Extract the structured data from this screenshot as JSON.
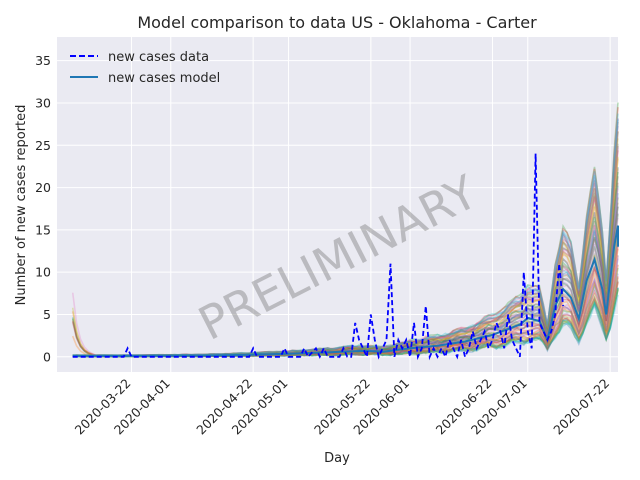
{
  "chart_data": {
    "type": "line",
    "title": "Model comparison to data US - Oklahoma - Carter",
    "xlabel": "Day",
    "ylabel": "Number of new cases reported",
    "watermark": "PRELIMINARY",
    "x_range": [
      "2020-03-03",
      "2020-07-24"
    ],
    "ylim": [
      -1.8,
      37.8
    ],
    "yticks": [
      0,
      5,
      10,
      15,
      20,
      25,
      30,
      35
    ],
    "xticks": [
      "2020-03-22",
      "2020-04-01",
      "2020-04-22",
      "2020-05-01",
      "2020-05-22",
      "2020-06-01",
      "2020-06-22",
      "2020-07-01",
      "2020-07-22"
    ],
    "grid": true,
    "legend_position": "top-left",
    "colors": {
      "background": "#eaeaf2",
      "grid": "#ffffff",
      "data": "#0000ff",
      "model": "#1f77b4"
    },
    "series": [
      {
        "name": "new cases data",
        "style": "dashed",
        "points": [
          [
            "2020-03-07",
            0
          ],
          [
            "2020-03-12",
            0
          ],
          [
            "2020-03-20",
            0
          ],
          [
            "2020-03-21",
            1
          ],
          [
            "2020-03-22",
            0
          ],
          [
            "2020-04-01",
            0
          ],
          [
            "2020-04-12",
            0
          ],
          [
            "2020-04-21",
            0
          ],
          [
            "2020-04-22",
            1
          ],
          [
            "2020-04-23",
            0
          ],
          [
            "2020-04-29",
            0
          ],
          [
            "2020-04-30",
            1
          ],
          [
            "2020-05-01",
            0
          ],
          [
            "2020-05-04",
            0
          ],
          [
            "2020-05-05",
            1
          ],
          [
            "2020-05-06",
            0
          ],
          [
            "2020-05-08",
            1
          ],
          [
            "2020-05-09",
            0
          ],
          [
            "2020-05-10",
            1
          ],
          [
            "2020-05-11",
            0
          ],
          [
            "2020-05-14",
            0
          ],
          [
            "2020-05-15",
            1
          ],
          [
            "2020-05-16",
            0
          ],
          [
            "2020-05-17",
            0
          ],
          [
            "2020-05-18",
            4
          ],
          [
            "2020-05-19",
            2
          ],
          [
            "2020-05-20",
            1
          ],
          [
            "2020-05-21",
            0
          ],
          [
            "2020-05-22",
            5
          ],
          [
            "2020-05-23",
            2
          ],
          [
            "2020-05-24",
            0
          ],
          [
            "2020-05-25",
            1
          ],
          [
            "2020-05-26",
            2
          ],
          [
            "2020-05-27",
            11
          ],
          [
            "2020-05-28",
            0
          ],
          [
            "2020-05-29",
            2
          ],
          [
            "2020-05-30",
            1
          ],
          [
            "2020-05-31",
            2
          ],
          [
            "2020-06-01",
            0
          ],
          [
            "2020-06-02",
            4
          ],
          [
            "2020-06-03",
            0
          ],
          [
            "2020-06-04",
            1
          ],
          [
            "2020-06-05",
            6
          ],
          [
            "2020-06-06",
            0
          ],
          [
            "2020-06-07",
            1
          ],
          [
            "2020-06-08",
            0
          ],
          [
            "2020-06-09",
            1
          ],
          [
            "2020-06-10",
            0
          ],
          [
            "2020-06-11",
            2
          ],
          [
            "2020-06-12",
            1
          ],
          [
            "2020-06-13",
            0
          ],
          [
            "2020-06-14",
            2
          ],
          [
            "2020-06-15",
            0
          ],
          [
            "2020-06-16",
            1
          ],
          [
            "2020-06-17",
            3
          ],
          [
            "2020-06-18",
            1
          ],
          [
            "2020-06-19",
            2
          ],
          [
            "2020-06-20",
            3
          ],
          [
            "2020-06-21",
            1
          ],
          [
            "2020-06-22",
            2
          ],
          [
            "2020-06-23",
            4
          ],
          [
            "2020-06-24",
            3
          ],
          [
            "2020-06-25",
            1
          ],
          [
            "2020-06-26",
            5
          ],
          [
            "2020-06-27",
            2
          ],
          [
            "2020-06-28",
            1
          ],
          [
            "2020-06-29",
            0
          ],
          [
            "2020-06-30",
            10
          ],
          [
            "2020-07-01",
            3
          ],
          [
            "2020-07-02",
            1
          ],
          [
            "2020-07-03",
            24
          ],
          [
            "2020-07-04",
            4
          ],
          [
            "2020-07-05",
            3
          ],
          [
            "2020-07-06",
            2
          ],
          [
            "2020-07-07",
            3
          ],
          [
            "2020-07-08",
            5
          ],
          [
            "2020-07-09",
            11
          ],
          [
            "2020-07-10",
            6
          ]
        ]
      },
      {
        "name": "new cases model",
        "style": "solid",
        "points": [
          [
            "2020-03-07",
            0.1
          ],
          [
            "2020-03-22",
            0.1
          ],
          [
            "2020-04-10",
            0.15
          ],
          [
            "2020-04-22",
            0.25
          ],
          [
            "2020-05-01",
            0.35
          ],
          [
            "2020-05-10",
            0.5
          ],
          [
            "2020-05-20",
            0.7
          ],
          [
            "2020-05-25",
            0.6
          ],
          [
            "2020-06-01",
            1.0
          ],
          [
            "2020-06-08",
            1.3
          ],
          [
            "2020-06-15",
            1.8
          ],
          [
            "2020-06-22",
            2.6
          ],
          [
            "2020-06-29",
            3.8
          ],
          [
            "2020-07-01",
            4.6
          ],
          [
            "2020-07-04",
            4.2
          ],
          [
            "2020-07-06",
            2.0
          ],
          [
            "2020-07-08",
            6.0
          ],
          [
            "2020-07-10",
            8.0
          ],
          [
            "2020-07-12",
            7.0
          ],
          [
            "2020-07-14",
            4.5
          ],
          [
            "2020-07-16",
            9.0
          ],
          [
            "2020-07-18",
            11.5
          ],
          [
            "2020-07-20",
            8.0
          ],
          [
            "2020-07-21",
            5.0
          ],
          [
            "2020-07-23",
            13.0
          ],
          [
            "2020-07-24",
            15.5
          ],
          [
            "2020-07-24",
            13.0
          ]
        ]
      }
    ]
  }
}
